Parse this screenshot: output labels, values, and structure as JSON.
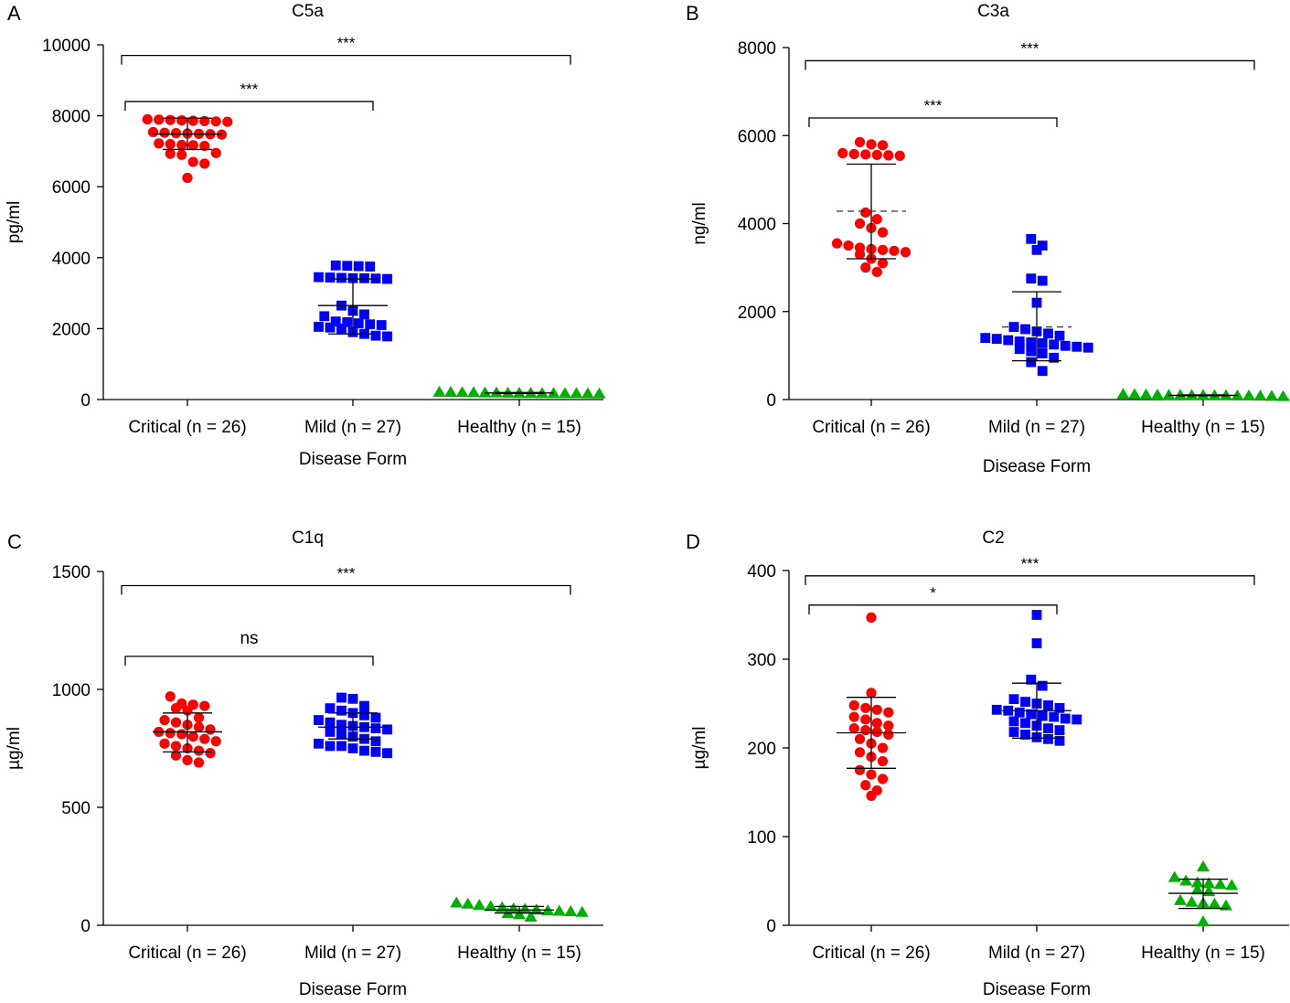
{
  "chart_data": [
    {
      "panel": "A",
      "type": "scatter",
      "title": "C5a",
      "xlabel": "Disease Form",
      "ylabel": "pg/ml",
      "ylim": [
        0,
        10000
      ],
      "yticks": [
        0,
        2000,
        4000,
        6000,
        8000,
        10000
      ],
      "categories": [
        "Critical (n = 26)",
        "Mild (n = 27)",
        "Healthy (n = 15)"
      ],
      "series": [
        {
          "name": "Critical (n = 26)",
          "color": "#ff0000",
          "marker": "circle",
          "values": [
            7900,
            7880,
            7860,
            7830,
            7850,
            7870,
            7890,
            7840,
            7500,
            7480,
            7520,
            7470,
            7540,
            7490,
            7510,
            7200,
            7150,
            7180,
            7220,
            7170,
            6950,
            6900,
            6930,
            6700,
            6650,
            6250
          ],
          "center": 7480,
          "upper": 7930,
          "lower": 7050
        },
        {
          "name": "Mild (n = 27)",
          "color": "#0000ff",
          "marker": "square",
          "values": [
            3780,
            3750,
            3770,
            3760,
            3450,
            3420,
            3440,
            3410,
            3430,
            3400,
            3420,
            2650,
            2500,
            2400,
            2350,
            2200,
            2180,
            2150,
            2120,
            2100,
            2050,
            2030,
            2000,
            1900,
            1850,
            1800,
            1780
          ],
          "center": 2650,
          "upper": 3400,
          "lower": 1850
        },
        {
          "name": "Healthy (n = 15)",
          "color": "#00b000",
          "marker": "triangle",
          "values": [
            180,
            200,
            170,
            190,
            210,
            160,
            185,
            175,
            195,
            165,
            205,
            170,
            180,
            190,
            175
          ],
          "center": 185,
          "upper": 200,
          "lower": 170
        }
      ],
      "brackets": [
        {
          "from": 0,
          "to": 1,
          "label": "***",
          "level": 8400
        },
        {
          "from": 0,
          "to": 2,
          "label": "***",
          "level": 9700
        }
      ],
      "panel_letter": "A"
    },
    {
      "panel": "B",
      "type": "scatter",
      "title": "C3a",
      "xlabel": "Disease Form",
      "ylabel": "ng/ml",
      "ylim": [
        0,
        8000
      ],
      "yticks": [
        0,
        2000,
        4000,
        6000,
        8000
      ],
      "categories": [
        "Critical (n = 26)",
        "Mild (n = 27)",
        "Healthy (n = 15)"
      ],
      "series": [
        {
          "name": "Critical (n = 26)",
          "color": "#ff0000",
          "marker": "circle",
          "values": [
            5850,
            5800,
            5780,
            5600,
            5580,
            5560,
            5570,
            5540,
            5550,
            4250,
            4100,
            4000,
            3900,
            3800,
            3550,
            3500,
            3450,
            3420,
            3400,
            3380,
            3350,
            3300,
            3200,
            3100,
            3000,
            2900
          ],
          "center": 4280,
          "upper": 5350,
          "lower": 3200,
          "dashed": true
        },
        {
          "name": "Mild (n = 27)",
          "color": "#0000ff",
          "marker": "square",
          "values": [
            3650,
            3500,
            3400,
            2750,
            2700,
            2200,
            1650,
            1600,
            1550,
            1500,
            1450,
            1400,
            1380,
            1350,
            1320,
            1300,
            1280,
            1250,
            1220,
            1200,
            1180,
            1150,
            1100,
            1050,
            950,
            850,
            650
          ],
          "center": 1650,
          "upper": 2450,
          "lower": 880,
          "dashed": true
        },
        {
          "name": "Healthy (n = 15)",
          "color": "#00b000",
          "marker": "triangle",
          "values": [
            90,
            110,
            80,
            100,
            120,
            70,
            95,
            85,
            105,
            75,
            115,
            90,
            100,
            85,
            95
          ],
          "center": 95,
          "upper": 105,
          "lower": 85
        }
      ],
      "brackets": [
        {
          "from": 0,
          "to": 1,
          "label": "***",
          "level": 6400
        },
        {
          "from": 0,
          "to": 2,
          "label": "***",
          "level": 7700
        }
      ],
      "panel_letter": "B"
    },
    {
      "panel": "C",
      "type": "scatter",
      "title": "C1q",
      "xlabel": "Disease Form",
      "ylabel": "µg/ml",
      "ylim": [
        0,
        1500
      ],
      "yticks": [
        0,
        500,
        1000,
        1500
      ],
      "categories": [
        "Critical (n = 26)",
        "Mild (n = 27)",
        "Healthy (n = 15)"
      ],
      "series": [
        {
          "name": "Critical (n = 26)",
          "color": "#ff0000",
          "marker": "circle",
          "values": [
            970,
            940,
            935,
            930,
            920,
            910,
            880,
            870,
            860,
            850,
            840,
            830,
            820,
            815,
            810,
            800,
            790,
            780,
            770,
            760,
            750,
            740,
            730,
            720,
            700,
            690
          ],
          "center": 820,
          "upper": 900,
          "lower": 735
        },
        {
          "name": "Mild (n = 27)",
          "color": "#0000ff",
          "marker": "square",
          "values": [
            965,
            960,
            930,
            920,
            910,
            900,
            890,
            880,
            870,
            860,
            850,
            845,
            840,
            835,
            830,
            820,
            810,
            800,
            790,
            780,
            770,
            760,
            760,
            750,
            740,
            735,
            730
          ],
          "center": 840,
          "upper": 900,
          "lower": 790
        },
        {
          "name": "Healthy (n = 15)",
          "color": "#00b000",
          "marker": "triangle",
          "values": [
            95,
            90,
            85,
            80,
            75,
            70,
            68,
            65,
            62,
            60,
            58,
            55,
            50,
            45,
            35
          ],
          "center": 65,
          "upper": 80,
          "lower": 52
        }
      ],
      "brackets": [
        {
          "from": 0,
          "to": 1,
          "label": "ns",
          "level": 1140
        },
        {
          "from": 0,
          "to": 2,
          "label": "***",
          "level": 1440
        }
      ],
      "panel_letter": "C"
    },
    {
      "panel": "D",
      "type": "scatter",
      "title": "C2",
      "xlabel": "Disease Form",
      "ylabel": "µg/ml",
      "ylim": [
        0,
        400
      ],
      "yticks": [
        0,
        100,
        200,
        300,
        400
      ],
      "categories": [
        "Critical (n = 26)",
        "Mild (n = 27)",
        "Healthy (n = 15)"
      ],
      "series": [
        {
          "name": "Critical (n = 26)",
          "color": "#ff0000",
          "marker": "circle",
          "values": [
            347,
            262,
            248,
            245,
            243,
            240,
            235,
            232,
            228,
            225,
            222,
            220,
            218,
            215,
            210,
            205,
            200,
            195,
            190,
            185,
            175,
            170,
            165,
            158,
            152,
            146
          ],
          "center": 217,
          "upper": 257,
          "lower": 177
        },
        {
          "name": "Mild (n = 27)",
          "color": "#0000ff",
          "marker": "square",
          "values": [
            350,
            318,
            277,
            270,
            255,
            252,
            250,
            248,
            245,
            243,
            242,
            240,
            238,
            236,
            235,
            233,
            232,
            230,
            228,
            225,
            222,
            220,
            218,
            215,
            212,
            210,
            208
          ],
          "center": 242,
          "upper": 273,
          "lower": 211
        },
        {
          "name": "Healthy (n = 15)",
          "color": "#00b000",
          "marker": "triangle",
          "values": [
            66,
            54,
            50,
            48,
            47,
            46,
            45,
            40,
            38,
            28,
            26,
            25,
            24,
            22,
            4
          ],
          "center": 36,
          "upper": 52,
          "lower": 19
        }
      ],
      "brackets": [
        {
          "from": 0,
          "to": 1,
          "label": "*",
          "level": 361
        },
        {
          "from": 0,
          "to": 2,
          "label": "***",
          "level": 394
        }
      ],
      "panel_letter": "D"
    }
  ]
}
